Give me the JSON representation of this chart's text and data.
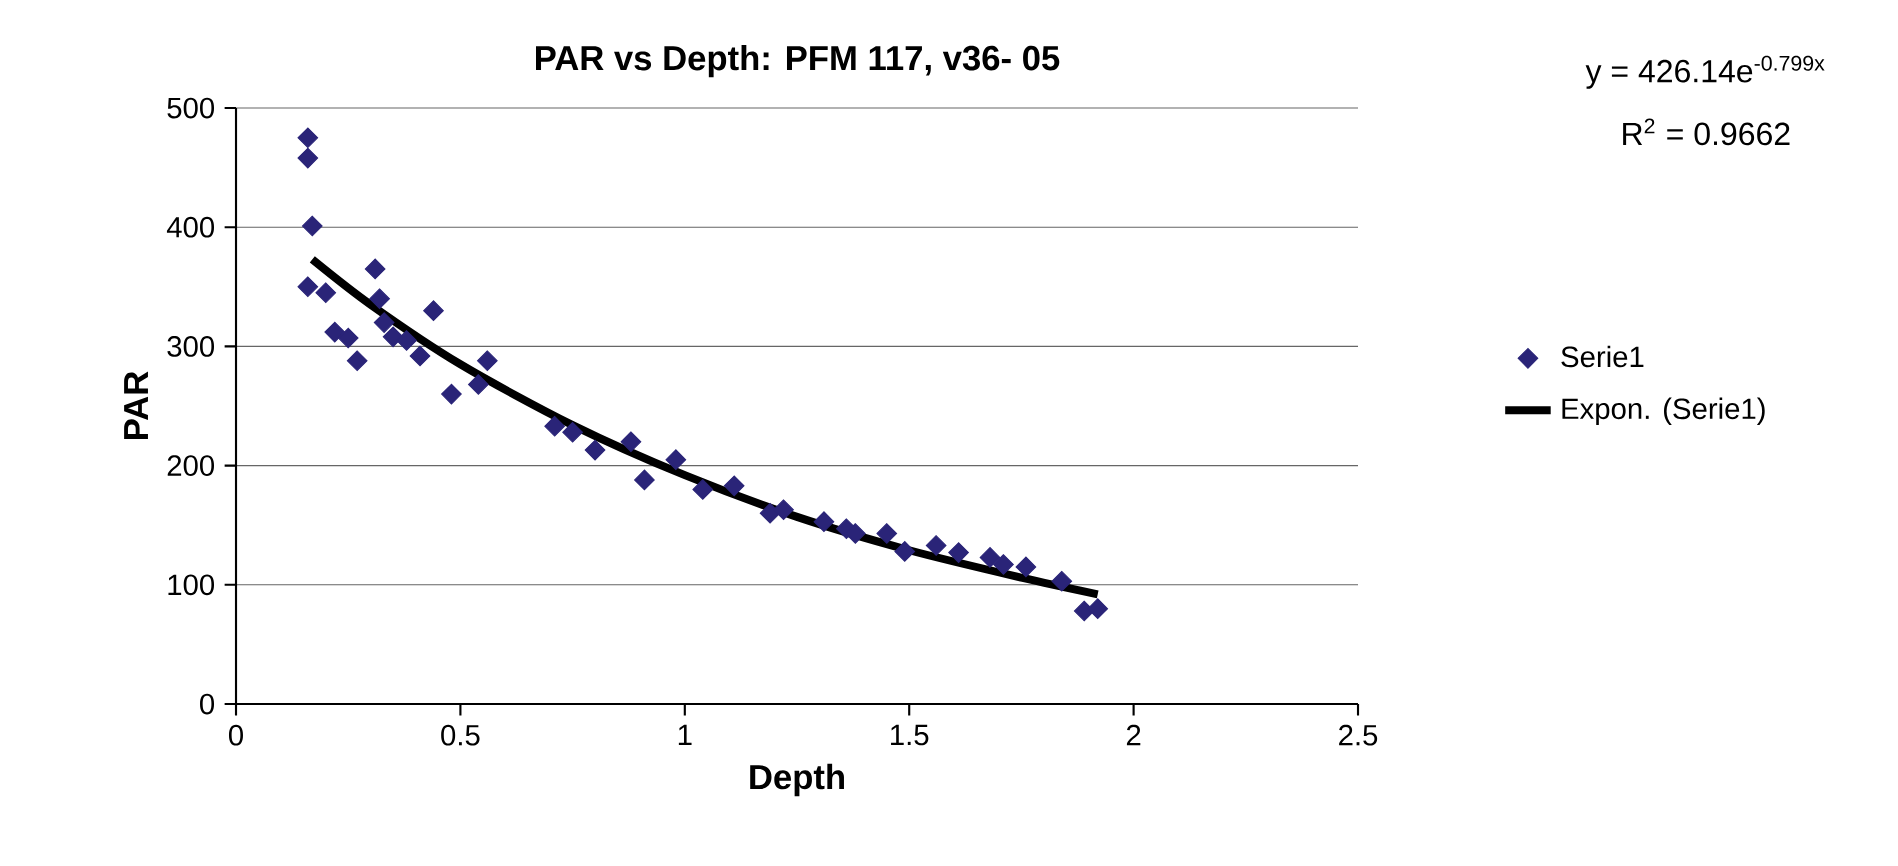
{
  "chart_data": {
    "type": "scatter",
    "title": "PAR vs Depth: PFM 117, v36- 05",
    "xlabel": "Depth",
    "ylabel": "PAR",
    "annotations": [
      "y = 426.14e$^{-0.799x}$",
      "R$^{2}$ = 0.9662"
    ],
    "series": [
      {
        "name": "Serie1",
        "marker": "diamond",
        "color": "#2a2478",
        "x": [
          0.16,
          0.16,
          0.16,
          0.17,
          0.2,
          0.22,
          0.25,
          0.27,
          0.31,
          0.32,
          0.33,
          0.35,
          0.38,
          0.41,
          0.44,
          0.48,
          0.54,
          0.56,
          0.71,
          0.75,
          0.8,
          0.88,
          0.91,
          0.98,
          1.04,
          1.11,
          1.19,
          1.22,
          1.31,
          1.36,
          1.38,
          1.45,
          1.49,
          1.56,
          1.61,
          1.68,
          1.71,
          1.76,
          1.84,
          1.89,
          1.92
        ],
        "values": [
          475,
          458,
          350,
          401,
          345,
          312,
          307,
          288,
          365,
          340,
          320,
          308,
          305,
          292,
          330,
          260,
          268,
          288,
          233,
          228,
          213,
          220,
          188,
          205,
          180,
          183,
          160,
          163,
          153,
          147,
          143,
          143,
          128,
          133,
          127,
          123,
          117,
          115,
          103,
          78,
          80
        ]
      },
      {
        "name": "Expon. (Serie1)",
        "type": "line",
        "marker": "none",
        "color": "#000000",
        "x": [
          0.17,
          0.3,
          0.5,
          0.75,
          1.0,
          1.25,
          1.5,
          1.75,
          1.92
        ],
        "values": [
          373,
          335,
          285,
          234,
          192,
          157,
          129,
          106,
          92
        ]
      }
    ],
    "xlim": [
      0,
      2.5
    ],
    "xticks": [
      0,
      0.5,
      1,
      1.5,
      2,
      2.5
    ],
    "ylim": [
      0,
      500
    ],
    "yticks": [
      0,
      100,
      200,
      300,
      400,
      500
    ],
    "grid": "y",
    "legend": "right"
  }
}
